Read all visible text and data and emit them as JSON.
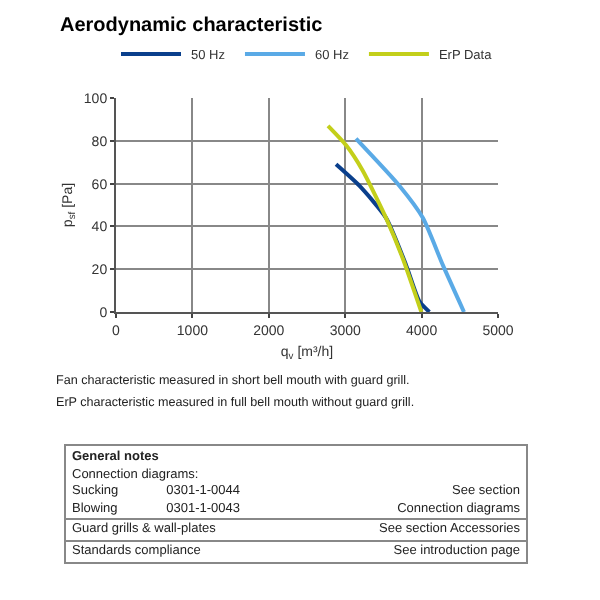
{
  "chart_data": {
    "type": "line",
    "title": "Aerodynamic characteristic",
    "xlabel": "q$_{v}$ [m³/h]",
    "ylabel": "p$_{sf}$ [Pa]",
    "xlim": [
      0,
      5000
    ],
    "xticks": [
      0,
      1000,
      2000,
      3000,
      4000,
      5000
    ],
    "ylim": [
      0,
      100
    ],
    "yticks": [
      0,
      20,
      40,
      60,
      80,
      100
    ],
    "grid": true,
    "legend": "top",
    "marker": "none",
    "line_style": "solid",
    "series": [
      {
        "name": "50 Hz",
        "color": "#0a3f8c",
        "x": [
          2880,
          3185,
          3534,
          3796,
          3971,
          4102
        ],
        "values": [
          69,
          59,
          44,
          22,
          5,
          0
        ]
      },
      {
        "name": "60 Hz",
        "color": "#5aaae6",
        "x": [
          3141,
          3709,
          4016,
          4277,
          4555
        ],
        "values": [
          81,
          59,
          44,
          22,
          0
        ]
      },
      {
        "name": "ErP Data",
        "color": "#c3cf1a",
        "x": [
          2775,
          3010,
          3230,
          3534,
          3754,
          3997
        ],
        "values": [
          87,
          78,
          66,
          44,
          25,
          0
        ]
      }
    ],
    "annotations": [
      "Fan characteristic measured in short bell mouth with guard grill.",
      "ErP characteristic measured in full bell mouth without guard grill.",
      "General notes",
      "Connection diagrams:",
      "Sucking",
      "0301-1-0044",
      "See section",
      "Blowing",
      "0301-1-0043",
      "Connection diagrams",
      "Guard grills & wall-plates",
      "See section Accessories",
      "Standards compliance",
      "See introduction page"
    ]
  }
}
